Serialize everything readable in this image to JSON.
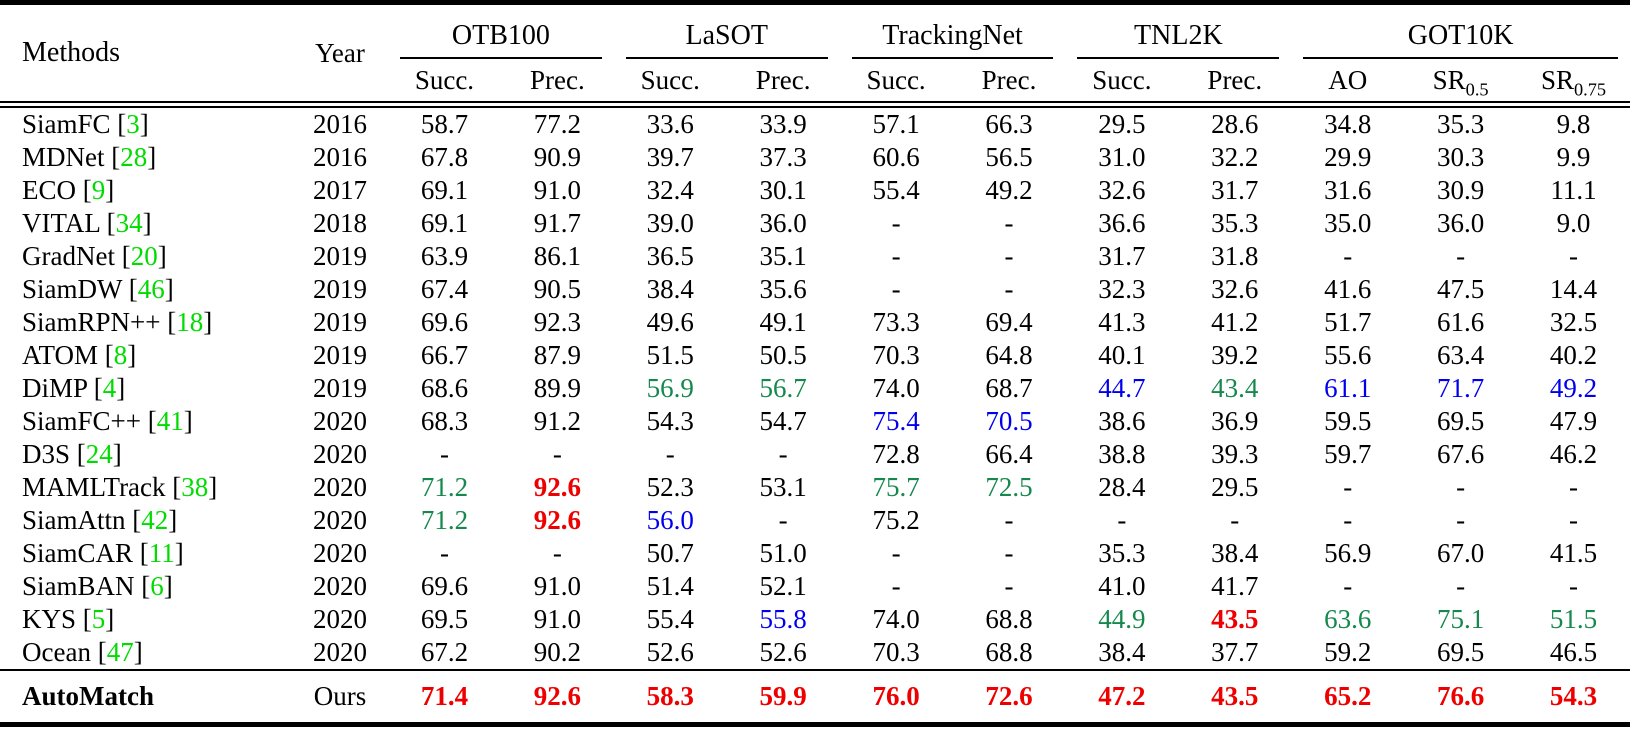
{
  "colors": {
    "citation_green": "#00dc00",
    "best_red": "#ee0000",
    "second_green": "#15884d",
    "third_blue": "#0000ee",
    "text": "#000000",
    "background": "#ffffff"
  },
  "table": {
    "cite_format": {
      "open": "[",
      "close": "]"
    },
    "header": {
      "methods_label": "Methods",
      "year_label": "Year",
      "groups": [
        {
          "label": "OTB100",
          "cols": [
            {
              "t": "Succ."
            },
            {
              "t": "Prec."
            }
          ]
        },
        {
          "label": "LaSOT",
          "cols": [
            {
              "t": "Succ."
            },
            {
              "t": "Prec."
            }
          ]
        },
        {
          "label": "TrackingNet",
          "cols": [
            {
              "t": "Succ."
            },
            {
              "t": "Prec."
            }
          ]
        },
        {
          "label": "TNL2K",
          "cols": [
            {
              "t": "Succ."
            },
            {
              "t": "Prec."
            }
          ]
        },
        {
          "label": "GOT10K",
          "cols": [
            {
              "t": "AO"
            },
            {
              "t": "SR",
              "sub": "0.5"
            },
            {
              "t": "SR",
              "sub": "0.75"
            }
          ]
        }
      ]
    },
    "rows": [
      {
        "method": "SiamFC",
        "cite": "3",
        "year": "2016",
        "values": [
          {
            "v": "58.7"
          },
          {
            "v": "77.2"
          },
          {
            "v": "33.6"
          },
          {
            "v": "33.9"
          },
          {
            "v": "57.1"
          },
          {
            "v": "66.3"
          },
          {
            "v": "29.5"
          },
          {
            "v": "28.6"
          },
          {
            "v": "34.8"
          },
          {
            "v": "35.3"
          },
          {
            "v": "9.8"
          }
        ]
      },
      {
        "method": "MDNet",
        "cite": "28",
        "year": "2016",
        "values": [
          {
            "v": "67.8"
          },
          {
            "v": "90.9"
          },
          {
            "v": "39.7"
          },
          {
            "v": "37.3"
          },
          {
            "v": "60.6"
          },
          {
            "v": "56.5"
          },
          {
            "v": "31.0"
          },
          {
            "v": "32.2"
          },
          {
            "v": "29.9"
          },
          {
            "v": "30.3"
          },
          {
            "v": "9.9"
          }
        ]
      },
      {
        "method": "ECO",
        "cite": "9",
        "year": "2017",
        "values": [
          {
            "v": "69.1"
          },
          {
            "v": "91.0"
          },
          {
            "v": "32.4"
          },
          {
            "v": "30.1"
          },
          {
            "v": "55.4"
          },
          {
            "v": "49.2"
          },
          {
            "v": "32.6"
          },
          {
            "v": "31.7"
          },
          {
            "v": "31.6"
          },
          {
            "v": "30.9"
          },
          {
            "v": "11.1"
          }
        ]
      },
      {
        "method": "VITAL",
        "cite": "34",
        "year": "2018",
        "values": [
          {
            "v": "69.1"
          },
          {
            "v": "91.7"
          },
          {
            "v": "39.0"
          },
          {
            "v": "36.0"
          },
          {
            "v": "-"
          },
          {
            "v": "-"
          },
          {
            "v": "36.6"
          },
          {
            "v": "35.3"
          },
          {
            "v": "35.0"
          },
          {
            "v": "36.0"
          },
          {
            "v": "9.0"
          }
        ]
      },
      {
        "method": "GradNet",
        "cite": "20",
        "year": "2019",
        "values": [
          {
            "v": "63.9"
          },
          {
            "v": "86.1"
          },
          {
            "v": "36.5"
          },
          {
            "v": "35.1"
          },
          {
            "v": "-"
          },
          {
            "v": "-"
          },
          {
            "v": "31.7"
          },
          {
            "v": "31.8"
          },
          {
            "v": "-"
          },
          {
            "v": "-"
          },
          {
            "v": "-"
          }
        ]
      },
      {
        "method": "SiamDW",
        "cite": "46",
        "year": "2019",
        "values": [
          {
            "v": "67.4"
          },
          {
            "v": "90.5"
          },
          {
            "v": "38.4"
          },
          {
            "v": "35.6"
          },
          {
            "v": "-"
          },
          {
            "v": "-"
          },
          {
            "v": "32.3"
          },
          {
            "v": "32.6"
          },
          {
            "v": "41.6"
          },
          {
            "v": "47.5"
          },
          {
            "v": "14.4"
          }
        ]
      },
      {
        "method": "SiamRPN++",
        "cite": "18",
        "year": "2019",
        "values": [
          {
            "v": "69.6"
          },
          {
            "v": "92.3"
          },
          {
            "v": "49.6"
          },
          {
            "v": "49.1"
          },
          {
            "v": "73.3"
          },
          {
            "v": "69.4"
          },
          {
            "v": "41.3"
          },
          {
            "v": "41.2"
          },
          {
            "v": "51.7"
          },
          {
            "v": "61.6"
          },
          {
            "v": "32.5"
          }
        ]
      },
      {
        "method": "ATOM",
        "cite": "8",
        "year": "2019",
        "values": [
          {
            "v": "66.7"
          },
          {
            "v": "87.9"
          },
          {
            "v": "51.5"
          },
          {
            "v": "50.5"
          },
          {
            "v": "70.3"
          },
          {
            "v": "64.8"
          },
          {
            "v": "40.1"
          },
          {
            "v": "39.2"
          },
          {
            "v": "55.6"
          },
          {
            "v": "63.4"
          },
          {
            "v": "40.2"
          }
        ]
      },
      {
        "method": "DiMP",
        "cite": "4",
        "year": "2019",
        "values": [
          {
            "v": "68.6"
          },
          {
            "v": "89.9"
          },
          {
            "v": "56.9",
            "s": "g"
          },
          {
            "v": "56.7",
            "s": "g"
          },
          {
            "v": "74.0"
          },
          {
            "v": "68.7"
          },
          {
            "v": "44.7",
            "s": "b"
          },
          {
            "v": "43.4",
            "s": "g"
          },
          {
            "v": "61.1",
            "s": "b"
          },
          {
            "v": "71.7",
            "s": "b"
          },
          {
            "v": "49.2",
            "s": "b"
          }
        ]
      },
      {
        "method": "SiamFC++",
        "cite": "41",
        "year": "2020",
        "values": [
          {
            "v": "68.3"
          },
          {
            "v": "91.2"
          },
          {
            "v": "54.3"
          },
          {
            "v": "54.7"
          },
          {
            "v": "75.4",
            "s": "b"
          },
          {
            "v": "70.5",
            "s": "b"
          },
          {
            "v": "38.6"
          },
          {
            "v": "36.9"
          },
          {
            "v": "59.5"
          },
          {
            "v": "69.5"
          },
          {
            "v": "47.9"
          }
        ]
      },
      {
        "method": "D3S",
        "cite": "24",
        "year": "2020",
        "values": [
          {
            "v": "-"
          },
          {
            "v": "-"
          },
          {
            "v": "-"
          },
          {
            "v": "-"
          },
          {
            "v": "72.8"
          },
          {
            "v": "66.4"
          },
          {
            "v": "38.8"
          },
          {
            "v": "39.3"
          },
          {
            "v": "59.7"
          },
          {
            "v": "67.6"
          },
          {
            "v": "46.2"
          }
        ]
      },
      {
        "method": "MAMLTrack",
        "cite": "38",
        "year": "2020",
        "values": [
          {
            "v": "71.2",
            "s": "g"
          },
          {
            "v": "92.6",
            "s": "r"
          },
          {
            "v": "52.3"
          },
          {
            "v": "53.1"
          },
          {
            "v": "75.7",
            "s": "g"
          },
          {
            "v": "72.5",
            "s": "g"
          },
          {
            "v": "28.4"
          },
          {
            "v": "29.5"
          },
          {
            "v": "-"
          },
          {
            "v": "-"
          },
          {
            "v": "-"
          }
        ]
      },
      {
        "method": "SiamAttn",
        "cite": "42",
        "year": "2020",
        "values": [
          {
            "v": "71.2",
            "s": "g"
          },
          {
            "v": "92.6",
            "s": "r"
          },
          {
            "v": "56.0",
            "s": "b"
          },
          {
            "v": "-"
          },
          {
            "v": "75.2"
          },
          {
            "v": "-"
          },
          {
            "v": "-"
          },
          {
            "v": "-"
          },
          {
            "v": "-"
          },
          {
            "v": "-"
          },
          {
            "v": "-"
          }
        ]
      },
      {
        "method": "SiamCAR",
        "cite": "11",
        "year": "2020",
        "values": [
          {
            "v": "-"
          },
          {
            "v": "-"
          },
          {
            "v": "50.7"
          },
          {
            "v": "51.0"
          },
          {
            "v": "-"
          },
          {
            "v": "-"
          },
          {
            "v": "35.3"
          },
          {
            "v": "38.4"
          },
          {
            "v": "56.9"
          },
          {
            "v": "67.0"
          },
          {
            "v": "41.5"
          }
        ]
      },
      {
        "method": "SiamBAN",
        "cite": "6",
        "year": "2020",
        "values": [
          {
            "v": "69.6"
          },
          {
            "v": "91.0"
          },
          {
            "v": "51.4"
          },
          {
            "v": "52.1"
          },
          {
            "v": "-"
          },
          {
            "v": "-"
          },
          {
            "v": "41.0"
          },
          {
            "v": "41.7"
          },
          {
            "v": "-"
          },
          {
            "v": "-"
          },
          {
            "v": "-"
          }
        ]
      },
      {
        "method": "KYS",
        "cite": "5",
        "year": "2020",
        "values": [
          {
            "v": "69.5"
          },
          {
            "v": "91.0"
          },
          {
            "v": "55.4"
          },
          {
            "v": "55.8",
            "s": "b"
          },
          {
            "v": "74.0"
          },
          {
            "v": "68.8"
          },
          {
            "v": "44.9",
            "s": "g"
          },
          {
            "v": "43.5",
            "s": "r"
          },
          {
            "v": "63.6",
            "s": "g"
          },
          {
            "v": "75.1",
            "s": "g"
          },
          {
            "v": "51.5",
            "s": "g"
          }
        ]
      },
      {
        "method": "Ocean",
        "cite": "47",
        "year": "2020",
        "values": [
          {
            "v": "67.2"
          },
          {
            "v": "90.2"
          },
          {
            "v": "52.6"
          },
          {
            "v": "52.6"
          },
          {
            "v": "70.3"
          },
          {
            "v": "68.8"
          },
          {
            "v": "38.4"
          },
          {
            "v": "37.7"
          },
          {
            "v": "59.2"
          },
          {
            "v": "69.5"
          },
          {
            "v": "46.5"
          }
        ]
      },
      {
        "method": "AutoMatch",
        "cite": null,
        "year": "Ours",
        "bold": true,
        "ours": true,
        "values": [
          {
            "v": "71.4",
            "s": "r"
          },
          {
            "v": "92.6",
            "s": "r"
          },
          {
            "v": "58.3",
            "s": "r"
          },
          {
            "v": "59.9",
            "s": "r"
          },
          {
            "v": "76.0",
            "s": "r"
          },
          {
            "v": "72.6",
            "s": "r"
          },
          {
            "v": "47.2",
            "s": "r"
          },
          {
            "v": "43.5",
            "s": "r"
          },
          {
            "v": "65.2",
            "s": "r"
          },
          {
            "v": "76.6",
            "s": "r"
          },
          {
            "v": "54.3",
            "s": "r"
          }
        ]
      }
    ]
  }
}
